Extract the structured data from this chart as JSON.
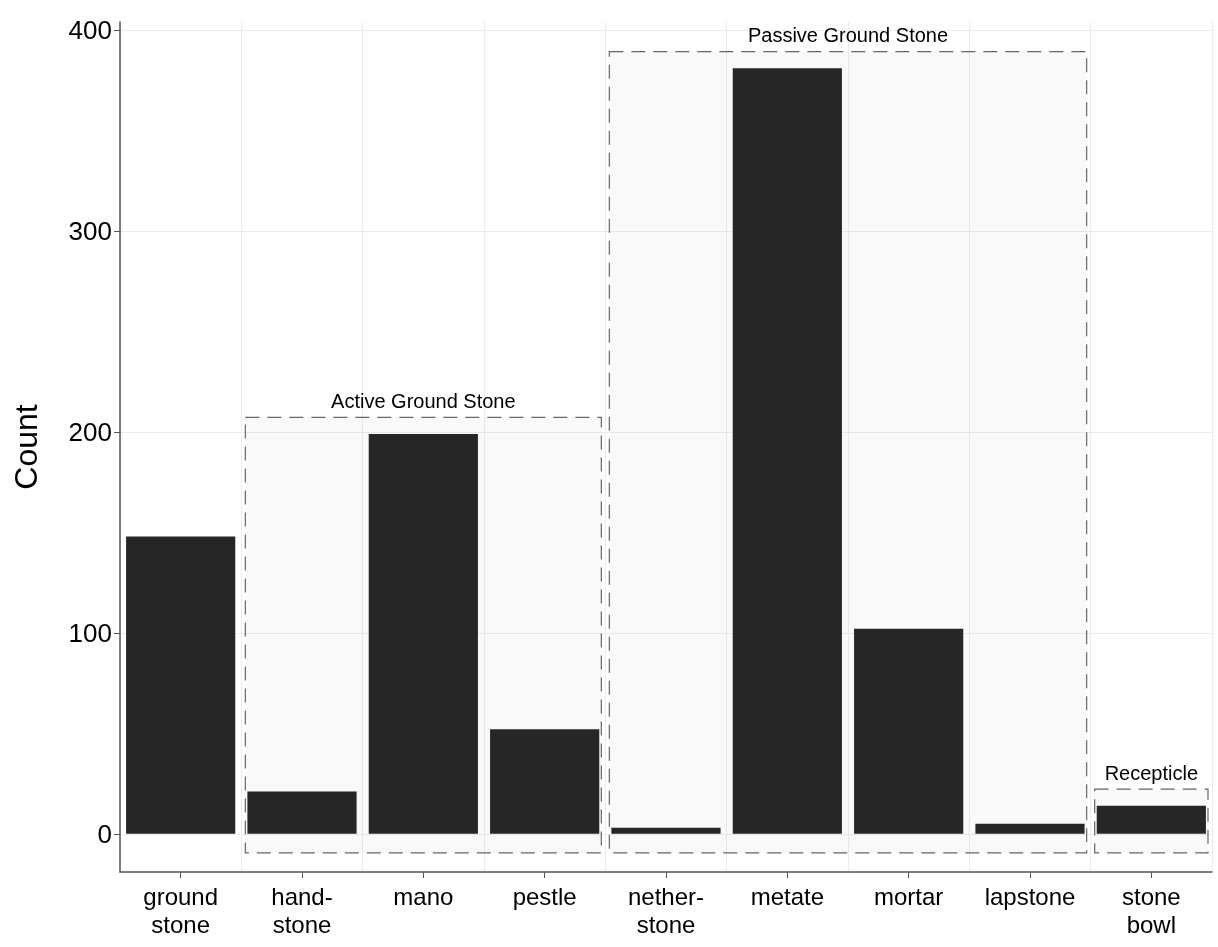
{
  "chart_data": {
    "type": "bar",
    "ylabel": "Count",
    "categories": [
      "ground\nstone",
      "hand-\nstone",
      "mano",
      "pestle",
      "nether-\nstone",
      "metate",
      "mortar",
      "lapstone",
      "stone\nbowl"
    ],
    "values": [
      148,
      21,
      199,
      52,
      3,
      381,
      102,
      5,
      14
    ],
    "color": "#262626",
    "ylim": [
      -19,
      404
    ],
    "yticks": [
      0,
      100,
      200,
      300,
      400
    ],
    "grid": true,
    "bands": [
      {
        "axis": "x",
        "from": "hand-\nstone",
        "to": "pestle",
        "label": "Active Ground Stone",
        "color": "#666666"
      },
      {
        "axis": "x",
        "from": "nether-\nstone",
        "to": "lapstone",
        "label": "Passive Ground Stone",
        "color": "#666666"
      },
      {
        "axis": "x",
        "from": "stone\nbowl",
        "to": "stone\nbowl",
        "label": "Recepticle",
        "color": "#666666"
      }
    ]
  }
}
